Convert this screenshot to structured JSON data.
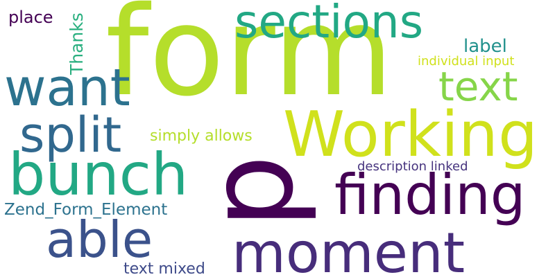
{
  "words": {
    "form": {
      "text": "form",
      "color": "#b5de2b"
    },
    "p": {
      "text": "p",
      "color": "#440154"
    },
    "sections": {
      "text": "sections",
      "color": "#22a884"
    },
    "working": {
      "text": "Working",
      "color": "#d0e11c"
    },
    "want": {
      "text": "want",
      "color": "#2c728e"
    },
    "split": {
      "text": "split",
      "color": "#31688e"
    },
    "bunch": {
      "text": "bunch",
      "color": "#22a884"
    },
    "text_big": {
      "text": "text",
      "color": "#86d549"
    },
    "finding": {
      "text": "finding",
      "color": "#440154"
    },
    "able": {
      "text": "able",
      "color": "#3b528b"
    },
    "moment": {
      "text": "moment",
      "color": "#472d7b"
    },
    "label": {
      "text": "label",
      "color": "#21918c"
    },
    "thanks": {
      "text": "Thanks",
      "color": "#29af7f"
    },
    "place": {
      "text": "place",
      "color": "#440154"
    },
    "individual_input": {
      "text": "individual input",
      "color": "#d0e11c"
    },
    "simply_allows": {
      "text": "simply allows",
      "color": "#b5de2b"
    },
    "description_linked": {
      "text": "description linked",
      "color": "#46337e"
    },
    "zend_form_element": {
      "text": "Zend_Form_Element",
      "color": "#2c728e"
    },
    "text_mixed": {
      "text": "text mixed",
      "color": "#3e4a89"
    }
  }
}
